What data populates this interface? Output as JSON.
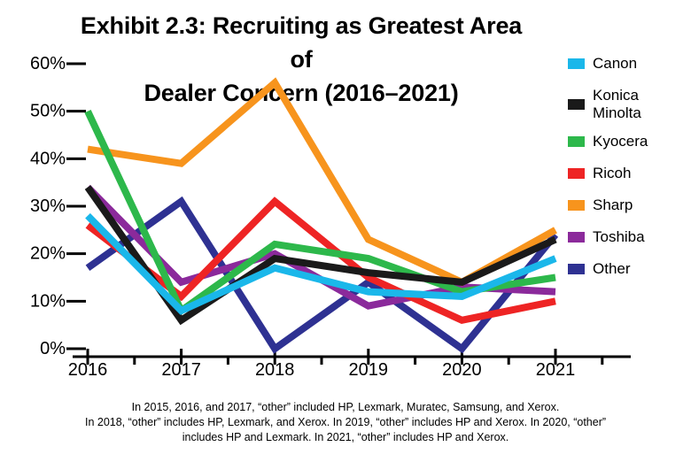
{
  "chart_data": {
    "type": "line",
    "title_lines": [
      "Exhibit 2.3: Recruiting as Greatest Area of",
      "Dealer Concern (2016–2021)"
    ],
    "categories": [
      "2016",
      "2017",
      "2018",
      "2019",
      "2020",
      "2021"
    ],
    "ylim": [
      0,
      60
    ],
    "yticks": [
      "0%",
      "10%",
      "20%",
      "30%",
      "40%",
      "50%",
      "60%"
    ],
    "xlabel": "",
    "ylabel": "",
    "grid": false,
    "legend_position": "right",
    "series": [
      {
        "name": "Canon",
        "color": "#1ab7ea",
        "values": [
          28,
          8,
          17,
          12,
          11,
          19
        ]
      },
      {
        "name": "Konica Minolta",
        "legend_lines": [
          "Konica",
          "Minolta"
        ],
        "color": "#1a1a1a",
        "values": [
          34,
          6,
          19,
          16,
          14,
          23
        ]
      },
      {
        "name": "Kyocera",
        "color": "#2db84b",
        "values": [
          50,
          8,
          22,
          19,
          12,
          15
        ]
      },
      {
        "name": "Ricoh",
        "color": "#ee2424",
        "values": [
          26,
          11,
          31,
          15,
          6,
          10
        ]
      },
      {
        "name": "Sharp",
        "color": "#f7941d",
        "values": [
          42,
          39,
          56,
          23,
          14,
          25
        ]
      },
      {
        "name": "Toshiba",
        "color": "#8b2a9b",
        "values": [
          34,
          14,
          20,
          9,
          13,
          12
        ]
      },
      {
        "name": "Other",
        "color": "#2e3192",
        "values": [
          17,
          31,
          0,
          14,
          0,
          24
        ]
      }
    ]
  },
  "footnote": [
    "In 2015, 2016, and 2017, “other” included HP, Lexmark, Muratec, Samsung, and Xerox.",
    "In 2018, “other” includes HP, Lexmark, and Xerox. In 2019, “other” includes HP and Xerox. In 2020, “other”",
    "includes HP and Lexmark. In 2021, “other” includes HP and Xerox."
  ]
}
